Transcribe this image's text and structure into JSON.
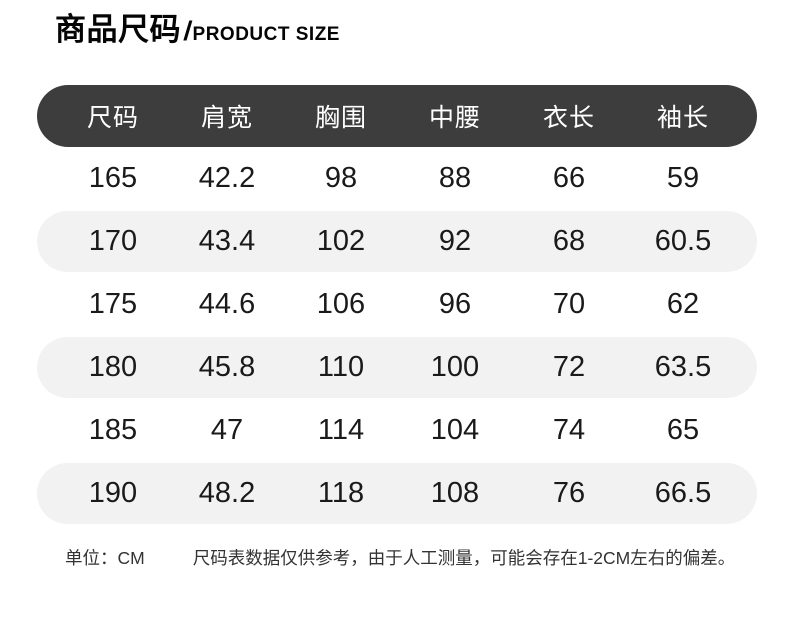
{
  "title": {
    "zh": "商品尺码",
    "slash": "/",
    "en": "PRODUCT SIZE"
  },
  "chart_data": {
    "type": "table",
    "title": "商品尺码 / PRODUCT SIZE",
    "unit": "CM",
    "columns": [
      "尺码",
      "肩宽",
      "胸围",
      "中腰",
      "衣长",
      "袖长"
    ],
    "rows": [
      [
        "165",
        "42.2",
        "98",
        "88",
        "66",
        "59"
      ],
      [
        "170",
        "43.4",
        "102",
        "92",
        "68",
        "60.5"
      ],
      [
        "175",
        "44.6",
        "106",
        "96",
        "70",
        "62"
      ],
      [
        "180",
        "45.8",
        "110",
        "100",
        "72",
        "63.5"
      ],
      [
        "185",
        "47",
        "114",
        "104",
        "74",
        "65"
      ],
      [
        "190",
        "48.2",
        "118",
        "108",
        "76",
        "66.5"
      ]
    ]
  },
  "footer": {
    "unit_label": "单位：CM",
    "note": "尺码表数据仅供参考，由于人工测量，可能会存在1-2CM左右的偏差。"
  },
  "colors": {
    "header_bg": "#3d3d3d",
    "header_text": "#ffffff",
    "row_alt_bg": "#f2f2f2",
    "body_text": "#1a1a1a",
    "footer_text": "#333333"
  }
}
